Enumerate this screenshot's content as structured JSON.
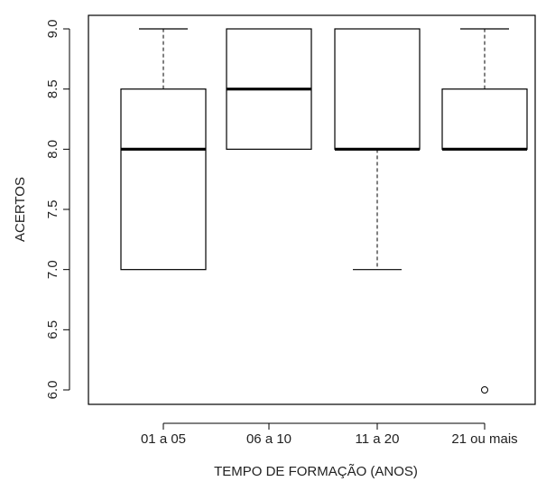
{
  "chart_data": {
    "type": "boxplot",
    "xlabel": "TEMPO DE FORMAÇÃO (ANOS)",
    "ylabel": "ACERTOS",
    "ylim": [
      6.0,
      9.0
    ],
    "yticks": [
      "6.0",
      "6.5",
      "7.0",
      "7.5",
      "8.0",
      "8.5",
      "9.0"
    ],
    "categories": [
      "01 a 05",
      "06 a 10",
      "11 a 20",
      "21 ou mais"
    ],
    "boxes": [
      {
        "category": "01 a 05",
        "whisker_low": 7.0,
        "q1": 7.0,
        "median": 8.0,
        "q3": 8.5,
        "whisker_high": 9.0,
        "outliers": []
      },
      {
        "category": "06 a 10",
        "whisker_low": 8.0,
        "q1": 8.0,
        "median": 8.5,
        "q3": 9.0,
        "whisker_high": 9.0,
        "outliers": []
      },
      {
        "category": "11 a 20",
        "whisker_low": 7.0,
        "q1": 8.0,
        "median": 8.0,
        "q3": 9.0,
        "whisker_high": 9.0,
        "outliers": []
      },
      {
        "category": "21 ou mais",
        "whisker_low": 8.0,
        "q1": 8.0,
        "median": 8.0,
        "q3": 8.5,
        "whisker_high": 9.0,
        "outliers": [
          6.0
        ]
      }
    ],
    "colors": {
      "stroke": "#000000",
      "fill": "#ffffff"
    }
  }
}
